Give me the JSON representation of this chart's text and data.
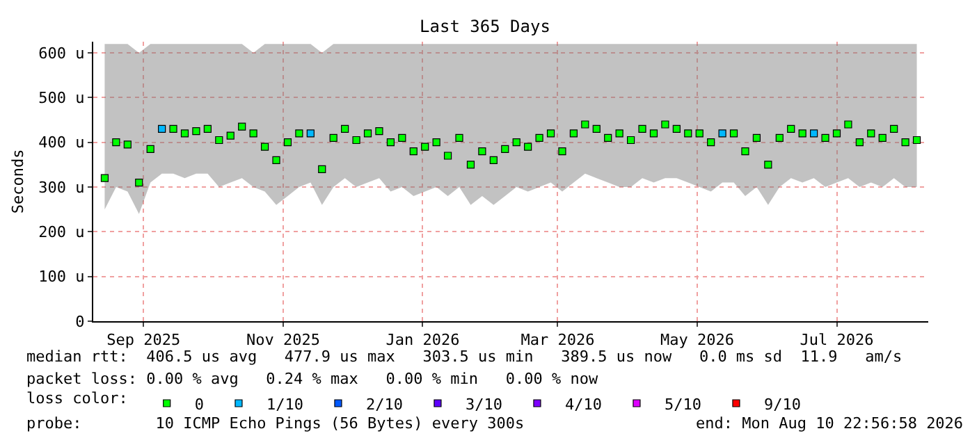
{
  "chart_data": {
    "type": "scatter",
    "title": "Last 365 Days",
    "ylabel": "Seconds",
    "x": [
      "2025-08-15",
      "2025-08-20",
      "2025-08-25",
      "2025-08-30",
      "2025-09-04",
      "2025-09-09",
      "2025-09-14",
      "2025-09-19",
      "2025-09-24",
      "2025-09-29",
      "2025-10-04",
      "2025-10-09",
      "2025-10-14",
      "2025-10-19",
      "2025-10-24",
      "2025-10-29",
      "2025-11-03",
      "2025-11-08",
      "2025-11-13",
      "2025-11-18",
      "2025-11-23",
      "2025-11-28",
      "2025-12-03",
      "2025-12-08",
      "2025-12-13",
      "2025-12-18",
      "2025-12-23",
      "2025-12-28",
      "2026-01-02",
      "2026-01-07",
      "2026-01-12",
      "2026-01-17",
      "2026-01-22",
      "2026-01-27",
      "2026-02-01",
      "2026-02-06",
      "2026-02-11",
      "2026-02-16",
      "2026-02-21",
      "2026-02-26",
      "2026-03-03",
      "2026-03-08",
      "2026-03-13",
      "2026-03-18",
      "2026-03-23",
      "2026-03-28",
      "2026-04-02",
      "2026-04-07",
      "2026-04-12",
      "2026-04-17",
      "2026-04-22",
      "2026-04-27",
      "2026-05-02",
      "2026-05-07",
      "2026-05-12",
      "2026-05-17",
      "2026-05-22",
      "2026-05-27",
      "2026-06-01",
      "2026-06-06",
      "2026-06-11",
      "2026-06-16",
      "2026-06-21",
      "2026-06-26",
      "2026-07-01",
      "2026-07-06",
      "2026-07-11",
      "2026-07-16",
      "2026-07-21",
      "2026-07-26",
      "2026-07-31",
      "2026-08-05"
    ],
    "series": [
      {
        "name": "0",
        "color": "#00ff00",
        "values": [
          320,
          400,
          395,
          310,
          385,
          null,
          430,
          420,
          425,
          430,
          405,
          415,
          435,
          420,
          390,
          360,
          400,
          420,
          null,
          340,
          410,
          430,
          405,
          420,
          425,
          400,
          410,
          380,
          390,
          400,
          370,
          410,
          350,
          380,
          360,
          385,
          400,
          390,
          410,
          420,
          380,
          420,
          440,
          430,
          410,
          420,
          405,
          430,
          420,
          440,
          430,
          420,
          420,
          400,
          null,
          420,
          380,
          410,
          350,
          410,
          430,
          420,
          null,
          410,
          420,
          440,
          400,
          420,
          410,
          430,
          400,
          405
        ],
        "lower": [
          250,
          300,
          290,
          240,
          310,
          330,
          330,
          320,
          330,
          330,
          300,
          310,
          320,
          300,
          290,
          260,
          280,
          300,
          310,
          260,
          300,
          320,
          300,
          310,
          320,
          290,
          300,
          280,
          290,
          300,
          280,
          300,
          260,
          280,
          260,
          280,
          300,
          290,
          300,
          310,
          290,
          310,
          330,
          320,
          310,
          300,
          300,
          320,
          310,
          320,
          320,
          310,
          300,
          290,
          310,
          310,
          280,
          300,
          260,
          300,
          320,
          310,
          320,
          300,
          310,
          320,
          300,
          310,
          300,
          320,
          300,
          300
        ],
        "upper": [
          620,
          620,
          620,
          600,
          620,
          620,
          620,
          620,
          620,
          620,
          620,
          620,
          620,
          600,
          620,
          620,
          620,
          620,
          620,
          600,
          620,
          620,
          620,
          620,
          620,
          620,
          620,
          620,
          620,
          620,
          620,
          620,
          620,
          620,
          620,
          620,
          620,
          620,
          620,
          620,
          620,
          620,
          620,
          620,
          620,
          620,
          620,
          620,
          620,
          620,
          620,
          620,
          620,
          620,
          620,
          620,
          620,
          620,
          620,
          620,
          620,
          620,
          620,
          620,
          620,
          620,
          620,
          620,
          620,
          620,
          620,
          620
        ]
      },
      {
        "name": "1/10",
        "color": "#00b8ff",
        "values": [
          null,
          null,
          null,
          null,
          null,
          430,
          null,
          null,
          null,
          null,
          null,
          null,
          null,
          null,
          null,
          null,
          null,
          null,
          420,
          null,
          null,
          null,
          null,
          null,
          null,
          null,
          null,
          null,
          null,
          null,
          null,
          null,
          null,
          null,
          null,
          null,
          null,
          null,
          null,
          null,
          null,
          null,
          null,
          null,
          null,
          null,
          null,
          null,
          null,
          null,
          null,
          null,
          null,
          null,
          420,
          null,
          null,
          null,
          null,
          null,
          null,
          null,
          420,
          null,
          null,
          null,
          null,
          null,
          null,
          null,
          null,
          null
        ]
      },
      {
        "name": "2/10",
        "color": "#0059ff",
        "values": [
          null,
          null,
          null,
          null,
          null,
          null,
          null,
          null,
          null,
          null,
          null,
          null,
          null,
          null,
          null,
          null,
          null,
          null,
          null,
          null,
          null,
          null,
          null,
          null,
          null,
          null,
          null,
          null,
          null,
          null,
          null,
          null,
          null,
          null,
          null,
          null,
          null,
          null,
          null,
          null,
          null,
          null,
          null,
          null,
          null,
          null,
          null,
          null,
          null,
          null,
          null,
          null,
          null,
          null,
          null,
          null,
          null,
          null,
          null,
          null,
          null,
          null,
          null,
          null,
          null,
          null,
          null,
          null,
          null,
          null,
          null,
          null
        ]
      },
      {
        "name": "3/10",
        "color": "#5e00ff",
        "values": [
          null,
          null,
          null,
          null,
          null,
          null,
          null,
          null,
          null,
          null,
          null,
          null,
          null,
          null,
          null,
          null,
          null,
          null,
          null,
          null,
          null,
          null,
          null,
          null,
          null,
          null,
          null,
          null,
          null,
          null,
          null,
          null,
          null,
          null,
          null,
          null,
          null,
          null,
          null,
          null,
          null,
          null,
          null,
          null,
          null,
          null,
          null,
          null,
          null,
          null,
          null,
          null,
          null,
          null,
          null,
          null,
          null,
          null,
          null,
          null,
          null,
          null,
          null,
          null,
          null,
          null,
          null,
          null,
          null,
          null,
          null,
          null
        ]
      },
      {
        "name": "4/10",
        "color": "#7e00ff",
        "values": [
          null,
          null,
          null,
          null,
          null,
          null,
          null,
          null,
          null,
          null,
          null,
          null,
          null,
          null,
          null,
          null,
          null,
          null,
          null,
          null,
          null,
          null,
          null,
          null,
          null,
          null,
          null,
          null,
          null,
          null,
          null,
          null,
          null,
          null,
          null,
          null,
          null,
          null,
          null,
          null,
          null,
          null,
          null,
          null,
          null,
          null,
          null,
          null,
          null,
          null,
          null,
          null,
          null,
          null,
          null,
          null,
          null,
          null,
          null,
          null,
          null,
          null,
          null,
          null,
          null,
          null,
          null,
          null,
          null,
          null,
          null,
          null
        ]
      },
      {
        "name": "5/10",
        "color": "#dd00ff",
        "values": [
          null,
          null,
          null,
          null,
          null,
          null,
          null,
          null,
          null,
          null,
          null,
          null,
          null,
          null,
          null,
          null,
          null,
          null,
          null,
          null,
          null,
          null,
          null,
          null,
          null,
          null,
          null,
          null,
          null,
          null,
          null,
          null,
          null,
          null,
          null,
          null,
          null,
          null,
          null,
          null,
          null,
          null,
          null,
          null,
          null,
          null,
          null,
          null,
          null,
          null,
          null,
          null,
          null,
          null,
          null,
          null,
          null,
          null,
          null,
          null,
          null,
          null,
          null,
          null,
          null,
          null,
          null,
          null,
          null,
          null,
          null,
          null
        ]
      },
      {
        "name": "9/10",
        "color": "#ff0000",
        "values": [
          null,
          null,
          null,
          null,
          null,
          null,
          null,
          null,
          null,
          null,
          null,
          null,
          null,
          null,
          null,
          null,
          null,
          null,
          null,
          null,
          null,
          null,
          null,
          null,
          null,
          null,
          null,
          null,
          null,
          null,
          null,
          null,
          null,
          null,
          null,
          null,
          null,
          null,
          null,
          null,
          null,
          null,
          null,
          null,
          null,
          null,
          null,
          null,
          null,
          null,
          null,
          null,
          null,
          null,
          null,
          null,
          null,
          null,
          null,
          null,
          null,
          null,
          null,
          null,
          null,
          null,
          null,
          null,
          null,
          null,
          null,
          null
        ]
      }
    ],
    "xlim": [
      "2025-08-10",
      "2026-08-10"
    ],
    "xticks": [
      {
        "value": "2025-09-01",
        "label": "Sep 2025"
      },
      {
        "value": "2025-11-01",
        "label": "Nov 2025"
      },
      {
        "value": "2026-01-01",
        "label": "Jan 2026"
      },
      {
        "value": "2026-03-01",
        "label": "Mar 2026"
      },
      {
        "value": "2026-05-01",
        "label": "May 2026"
      },
      {
        "value": "2026-07-01",
        "label": "Jul 2026"
      }
    ],
    "ylim": [
      0,
      625
    ],
    "yticks": [
      0,
      {
        "value": 100,
        "label": "100 u"
      },
      {
        "value": 200,
        "label": "200 u"
      },
      {
        "value": 300,
        "label": "300 u"
      },
      {
        "value": 400,
        "label": "400 u"
      },
      {
        "value": 500,
        "label": "500 u"
      },
      {
        "value": 600,
        "label": "600 u"
      }
    ],
    "grid": true,
    "legend": "bottom",
    "legend_title": "loss color:",
    "marker": "square",
    "annotations": [
      "median rtt:  406.5 us avg   477.9 us max   303.5 us min   389.5 us now   0.0 ms sd  11.9   am/s",
      "packet loss: 0.00 % avg   0.24 % max   0.00 % min   0.00 % now",
      "probe:        10 ICMP Echo Pings (56 Bytes) every 300s",
      "end: Mon Aug 10 22:56:58 2026"
    ]
  }
}
